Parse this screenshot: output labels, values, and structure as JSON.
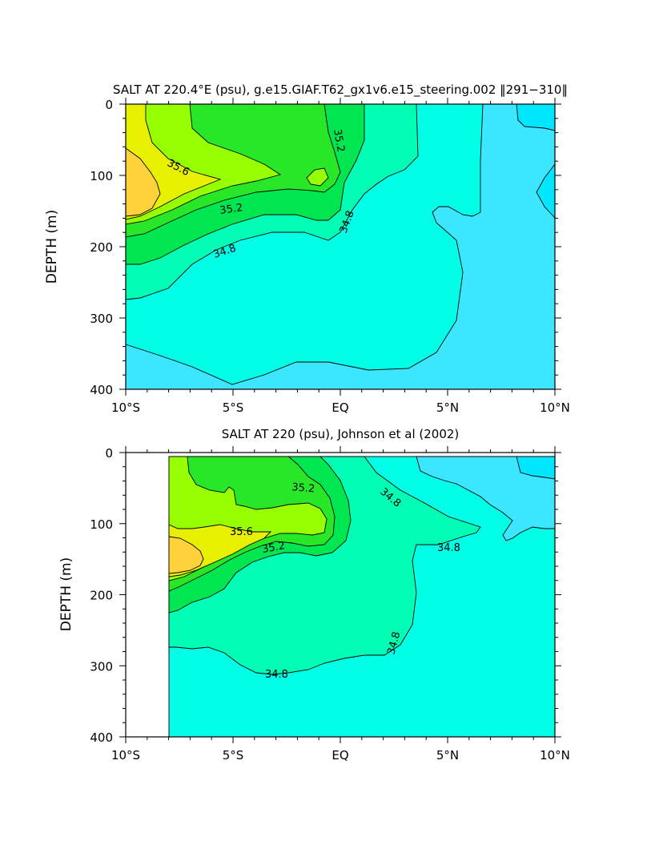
{
  "colors": {
    "sal_lt_34_4": "#00e6ff",
    "sal_34_4_34_6": "#3ce6ff",
    "sal_34_6_34_8": "#00ffe6",
    "sal_34_8_35_0": "#00ffb4",
    "sal_35_0_35_2": "#00e650",
    "sal_35_2_35_4": "#28e628",
    "sal_35_4_35_6": "#96ff00",
    "sal_35_6_35_8": "#e6f000",
    "sal_gt_35_8": "#ffd23c",
    "outline": "#000000"
  },
  "chart_data": [
    {
      "type": "contour",
      "title": "SALT AT 220.4°E (psu), g.e15.GIAF.T62_gx1v6.e15_steering.002 ‖291−310‖",
      "xlabel": "",
      "ylabel": "DEPTH (m)",
      "x_ticks": [
        "10°S",
        "5°S",
        "EQ",
        "5°N",
        "10°N"
      ],
      "x_tick_values": [
        -10,
        -5,
        0,
        5,
        10
      ],
      "y_ticks": [
        "0",
        "100",
        "200",
        "300",
        "400"
      ],
      "y_tick_values": [
        0,
        100,
        200,
        300,
        400
      ],
      "xlim": [
        -10,
        10
      ],
      "ylim": [
        400,
        0
      ],
      "contour_labels": [
        "35.6",
        "35.2",
        "35.2",
        "34.8",
        "34.8"
      ]
    },
    {
      "type": "contour",
      "title": "SALT AT 220 (psu), Johnson et al (2002)",
      "xlabel": "",
      "ylabel": "DEPTH (m)",
      "x_ticks": [
        "10°S",
        "5°S",
        "EQ",
        "5°N",
        "10°N"
      ],
      "x_tick_values": [
        -10,
        -5,
        0,
        5,
        10
      ],
      "y_ticks": [
        "0",
        "100",
        "200",
        "300",
        "400"
      ],
      "y_tick_values": [
        0,
        100,
        200,
        300,
        400
      ],
      "xlim": [
        -10,
        10
      ],
      "ylim": [
        400,
        0
      ],
      "data_start_lat": -8,
      "contour_labels": [
        "35.2",
        "35.6",
        "35.2",
        "34.8",
        "34.8",
        "34.8",
        "34.8"
      ]
    }
  ]
}
